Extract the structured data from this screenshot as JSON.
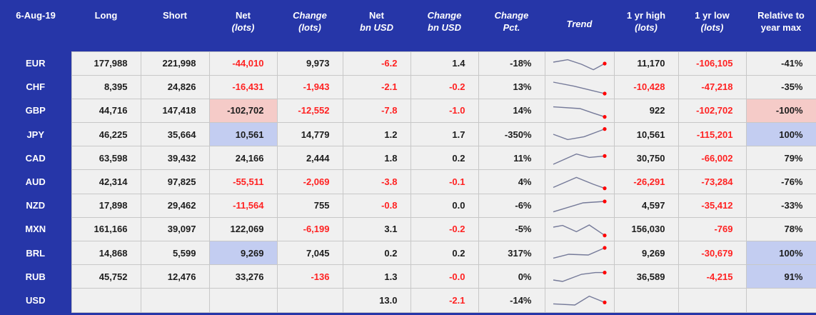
{
  "colors": {
    "header_blue": "#2636a8",
    "cell_bg": "#f0f0f0",
    "grid_border": "#c8c8c8",
    "negative_red": "#ff2222",
    "highlight_pink": "#f5cbc8",
    "highlight_blue": "#c3cdf1",
    "sparkline": "#757a99",
    "sparkline_dot": "#ff0000",
    "header_text": "#ffffff"
  },
  "chart_data": {
    "type": "table",
    "date": "6-Aug-19",
    "columns": [
      {
        "key": "long",
        "l1": "Long",
        "l2": "",
        "i1": false,
        "i2": false
      },
      {
        "key": "short",
        "l1": "Short",
        "l2": "",
        "i1": false,
        "i2": false
      },
      {
        "key": "net_lots",
        "l1": "Net",
        "l2": "(lots)",
        "i1": false,
        "i2": true
      },
      {
        "key": "change_lots",
        "l1": "Change",
        "l2": "(lots)",
        "i1": true,
        "i2": true
      },
      {
        "key": "net_bn_usd",
        "l1": "Net",
        "l2": "bn USD",
        "i1": false,
        "i2": true
      },
      {
        "key": "change_bn_usd",
        "l1": "Change",
        "l2": "bn USD",
        "i1": true,
        "i2": true
      },
      {
        "key": "change_pct",
        "l1": "Change",
        "l2": "Pct.",
        "i1": true,
        "i2": true
      },
      {
        "key": "trend",
        "l1": "Trend",
        "l2": "",
        "i1": true,
        "i2": false,
        "vcenter": true
      },
      {
        "key": "yr_high",
        "l1": "1 yr high",
        "l2": "(lots)",
        "i1": false,
        "i2": true
      },
      {
        "key": "yr_low",
        "l1": "1 yr low",
        "l2": "(lots)",
        "i1": false,
        "i2": true
      },
      {
        "key": "relative",
        "l1": "Relative to",
        "l2": "year max",
        "i1": false,
        "i2": false
      }
    ],
    "rows": [
      {
        "ccy": "EUR",
        "cells": [
          {
            "v": "177,988"
          },
          {
            "v": "221,998"
          },
          {
            "v": "-44,010",
            "neg": true
          },
          {
            "v": "9,973"
          },
          {
            "v": "-6.2",
            "neg": true
          },
          {
            "v": "1.4"
          },
          {
            "v": "-18%"
          },
          {
            "trend": [
              [
                0,
                0.35
              ],
              [
                0.28,
                0.18
              ],
              [
                0.55,
                0.5
              ],
              [
                0.78,
                0.88
              ],
              [
                1,
                0.45
              ]
            ]
          },
          {
            "v": "11,170"
          },
          {
            "v": "-106,105",
            "neg": true
          },
          {
            "v": "-41%"
          }
        ]
      },
      {
        "ccy": "CHF",
        "cells": [
          {
            "v": "8,395"
          },
          {
            "v": "24,826"
          },
          {
            "v": "-16,431",
            "neg": true
          },
          {
            "v": "-1,943",
            "neg": true
          },
          {
            "v": "-2.1",
            "neg": true
          },
          {
            "v": "-0.2",
            "neg": true
          },
          {
            "v": "13%"
          },
          {
            "trend": [
              [
                0,
                0.1
              ],
              [
                0.4,
                0.38
              ],
              [
                1,
                0.9
              ]
            ]
          },
          {
            "v": "-10,428",
            "neg": true
          },
          {
            "v": "-47,218",
            "neg": true
          },
          {
            "v": "-35%"
          }
        ]
      },
      {
        "ccy": "GBP",
        "cells": [
          {
            "v": "44,716"
          },
          {
            "v": "147,418"
          },
          {
            "v": "-102,702",
            "hl": "pink"
          },
          {
            "v": "-12,552",
            "neg": true
          },
          {
            "v": "-7.8",
            "neg": true
          },
          {
            "v": "-1.0",
            "neg": true
          },
          {
            "v": "14%"
          },
          {
            "trend": [
              [
                0,
                0.18
              ],
              [
                0.52,
                0.3
              ],
              [
                0.78,
                0.62
              ],
              [
                1,
                0.88
              ]
            ]
          },
          {
            "v": "922"
          },
          {
            "v": "-102,702",
            "neg": true
          },
          {
            "v": "-100%",
            "hl": "pink"
          }
        ]
      },
      {
        "ccy": "JPY",
        "cells": [
          {
            "v": "46,225"
          },
          {
            "v": "35,664"
          },
          {
            "v": "10,561",
            "hl": "blue"
          },
          {
            "v": "14,779"
          },
          {
            "v": "1.2"
          },
          {
            "v": "1.7"
          },
          {
            "v": "-350%"
          },
          {
            "trend": [
              [
                0,
                0.45
              ],
              [
                0.28,
                0.82
              ],
              [
                0.6,
                0.62
              ],
              [
                1,
                0.08
              ]
            ]
          },
          {
            "v": "10,561"
          },
          {
            "v": "-115,201",
            "neg": true
          },
          {
            "v": "100%",
            "hl": "blue"
          }
        ]
      },
      {
        "ccy": "CAD",
        "cells": [
          {
            "v": "63,598"
          },
          {
            "v": "39,432"
          },
          {
            "v": "24,166"
          },
          {
            "v": "2,444"
          },
          {
            "v": "1.8"
          },
          {
            "v": "0.2"
          },
          {
            "v": "11%"
          },
          {
            "trend": [
              [
                0,
                0.9
              ],
              [
                0.45,
                0.18
              ],
              [
                0.7,
                0.42
              ],
              [
                1,
                0.32
              ]
            ]
          },
          {
            "v": "30,750"
          },
          {
            "v": "-66,002",
            "neg": true
          },
          {
            "v": "79%"
          }
        ]
      },
      {
        "ccy": "AUD",
        "cells": [
          {
            "v": "42,314"
          },
          {
            "v": "97,825"
          },
          {
            "v": "-55,511",
            "neg": true
          },
          {
            "v": "-2,069",
            "neg": true
          },
          {
            "v": "-3.8",
            "neg": true
          },
          {
            "v": "-0.1",
            "neg": true
          },
          {
            "v": "4%"
          },
          {
            "trend": [
              [
                0,
                0.82
              ],
              [
                0.45,
                0.12
              ],
              [
                0.78,
                0.6
              ],
              [
                1,
                0.88
              ]
            ]
          },
          {
            "v": "-26,291",
            "neg": true
          },
          {
            "v": "-73,284",
            "neg": true
          },
          {
            "v": "-76%"
          }
        ]
      },
      {
        "ccy": "NZD",
        "cells": [
          {
            "v": "17,898"
          },
          {
            "v": "29,462"
          },
          {
            "v": "-11,564",
            "neg": true
          },
          {
            "v": "755"
          },
          {
            "v": "-0.8",
            "neg": true
          },
          {
            "v": "0.0"
          },
          {
            "v": "-6%"
          },
          {
            "trend": [
              [
                0,
                0.88
              ],
              [
                0.58,
                0.25
              ],
              [
                1,
                0.15
              ]
            ]
          },
          {
            "v": "4,597"
          },
          {
            "v": "-35,412",
            "neg": true
          },
          {
            "v": "-33%"
          }
        ]
      },
      {
        "ccy": "MXN",
        "cells": [
          {
            "v": "161,166"
          },
          {
            "v": "39,097"
          },
          {
            "v": "122,069"
          },
          {
            "v": "-6,199",
            "neg": true
          },
          {
            "v": "3.1"
          },
          {
            "v": "-0.2",
            "neg": true
          },
          {
            "v": "-5%"
          },
          {
            "trend": [
              [
                0,
                0.3
              ],
              [
                0.18,
                0.18
              ],
              [
                0.45,
                0.62
              ],
              [
                0.7,
                0.15
              ],
              [
                1,
                0.88
              ]
            ]
          },
          {
            "v": "156,030"
          },
          {
            "v": "-769",
            "neg": true
          },
          {
            "v": "78%"
          }
        ]
      },
      {
        "ccy": "BRL",
        "cells": [
          {
            "v": "14,868"
          },
          {
            "v": "5,599"
          },
          {
            "v": "9,269",
            "hl": "blue"
          },
          {
            "v": "7,045"
          },
          {
            "v": "0.2"
          },
          {
            "v": "0.2"
          },
          {
            "v": "317%"
          },
          {
            "trend": [
              [
                0,
                0.82
              ],
              [
                0.3,
                0.55
              ],
              [
                0.68,
                0.6
              ],
              [
                1,
                0.1
              ]
            ]
          },
          {
            "v": "9,269"
          },
          {
            "v": "-30,679",
            "neg": true
          },
          {
            "v": "100%",
            "hl": "blue"
          }
        ]
      },
      {
        "ccy": "RUB",
        "cells": [
          {
            "v": "45,752"
          },
          {
            "v": "12,476"
          },
          {
            "v": "33,276"
          },
          {
            "v": "-136",
            "neg": true
          },
          {
            "v": "1.3"
          },
          {
            "v": "-0.0",
            "neg": true
          },
          {
            "v": "0%"
          },
          {
            "trend": [
              [
                0,
                0.7
              ],
              [
                0.18,
                0.8
              ],
              [
                0.55,
                0.3
              ],
              [
                0.82,
                0.18
              ],
              [
                1,
                0.18
              ]
            ]
          },
          {
            "v": "36,589"
          },
          {
            "v": "-4,215",
            "neg": true
          },
          {
            "v": "91%",
            "hl": "blue"
          }
        ]
      },
      {
        "ccy": "USD",
        "cells": [
          {
            "v": ""
          },
          {
            "v": ""
          },
          {
            "v": ""
          },
          {
            "v": ""
          },
          {
            "v": "13.0"
          },
          {
            "v": "-2.1",
            "neg": true
          },
          {
            "v": "-14%"
          },
          {
            "trend": [
              [
                0,
                0.72
              ],
              [
                0.42,
                0.8
              ],
              [
                0.7,
                0.18
              ],
              [
                1,
                0.62
              ]
            ]
          },
          {
            "v": ""
          },
          {
            "v": ""
          },
          {
            "v": ""
          }
        ]
      }
    ]
  }
}
